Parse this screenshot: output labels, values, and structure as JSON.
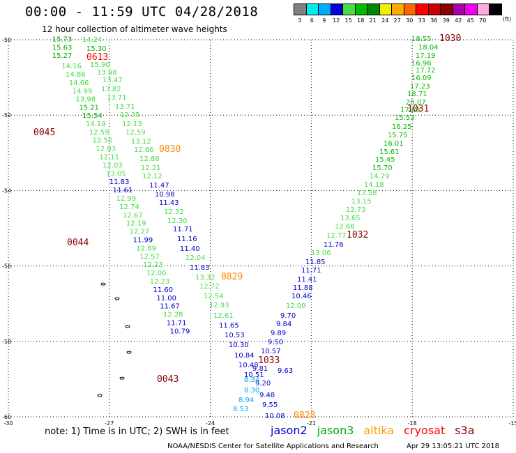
{
  "header": {
    "title": "00:00 - 11:59 UTC 04/28/2018",
    "subtitle": "12 hour collection of altimeter wave heights"
  },
  "color_scale": {
    "unit": "(ft)",
    "bins": [
      {
        "label": "3",
        "color": "#808080"
      },
      {
        "label": "6",
        "color": "#00eeee"
      },
      {
        "label": "9",
        "color": "#00aaff"
      },
      {
        "label": "12",
        "color": "#0000dd"
      },
      {
        "label": "15",
        "color": "#44dd44"
      },
      {
        "label": "18",
        "color": "#00bb00"
      },
      {
        "label": "21",
        "color": "#008800"
      },
      {
        "label": "24",
        "color": "#eeee00"
      },
      {
        "label": "27",
        "color": "#ffaa00"
      },
      {
        "label": "30",
        "color": "#ff6600"
      },
      {
        "label": "33",
        "color": "#ff0000"
      },
      {
        "label": "36",
        "color": "#cc0000"
      },
      {
        "label": "39",
        "color": "#880000"
      },
      {
        "label": "42",
        "color": "#aa00aa"
      },
      {
        "label": "45",
        "color": "#ee00ee"
      },
      {
        "label": "70",
        "color": "#ffaadd"
      },
      {
        "label": "",
        "color": "#000000"
      }
    ]
  },
  "map": {
    "lon_range": [
      -30,
      -15
    ],
    "lat_range": [
      -60,
      -50
    ],
    "lat_ticks": [
      {
        "value": -50,
        "label": "-50"
      },
      {
        "value": -52,
        "label": "-52"
      },
      {
        "value": -54,
        "label": "-54"
      },
      {
        "value": -56,
        "label": "-56"
      },
      {
        "value": -58,
        "label": "-58"
      },
      {
        "value": -60,
        "label": "-60"
      }
    ],
    "lon_ticks": [
      {
        "value": -30,
        "label": "-30"
      },
      {
        "value": -27,
        "label": "-27"
      },
      {
        "value": -24,
        "label": "-24"
      },
      {
        "value": -21,
        "label": "-21"
      },
      {
        "value": -18,
        "label": "-18"
      },
      {
        "value": -15,
        "label": "-15"
      }
    ],
    "grid": "dotted",
    "tracks": [
      {
        "satellite": "jason3",
        "points": [
          {
            "lon": -28.7,
            "lat": -50.05,
            "v": "15.73"
          },
          {
            "lon": -28.7,
            "lat": -50.27,
            "v": "15.63"
          },
          {
            "lon": -28.7,
            "lat": -50.48,
            "v": "15.27"
          },
          {
            "lon": -28.42,
            "lat": -50.76,
            "v": "14.16"
          },
          {
            "lon": -28.3,
            "lat": -50.98,
            "v": "14.86"
          },
          {
            "lon": -28.2,
            "lat": -51.2,
            "v": "14.66"
          },
          {
            "lon": -28.1,
            "lat": -51.42,
            "v": "14.99"
          },
          {
            "lon": -28.0,
            "lat": -51.64,
            "v": "13.98"
          },
          {
            "lon": -27.9,
            "lat": -51.86,
            "v": "15.21"
          },
          {
            "lon": -27.8,
            "lat": -52.07,
            "v": "15.54"
          },
          {
            "lon": -27.7,
            "lat": -52.29,
            "v": "14.19"
          },
          {
            "lon": -27.6,
            "lat": -52.51,
            "v": "12.59"
          },
          {
            "lon": -27.5,
            "lat": -52.73,
            "v": "12.50"
          },
          {
            "lon": -27.4,
            "lat": -52.95,
            "v": "12.83"
          },
          {
            "lon": -27.3,
            "lat": -53.17,
            "v": "12.11"
          },
          {
            "lon": -27.2,
            "lat": -53.39,
            "v": "12.03"
          },
          {
            "lon": -27.1,
            "lat": -53.61,
            "v": "13.05"
          },
          {
            "lon": -27.0,
            "lat": -53.83,
            "v": "11.83"
          },
          {
            "lon": -26.9,
            "lat": -54.05,
            "v": "11.61"
          },
          {
            "lon": -26.8,
            "lat": -54.27,
            "v": "12.99"
          },
          {
            "lon": -26.7,
            "lat": -54.49,
            "v": "12.74"
          },
          {
            "lon": -26.6,
            "lat": -54.71,
            "v": "12.67"
          },
          {
            "lon": -26.5,
            "lat": -54.93,
            "v": "12.19"
          },
          {
            "lon": -26.4,
            "lat": -55.15,
            "v": "12.27"
          },
          {
            "lon": -26.3,
            "lat": -55.37,
            "v": "11.99"
          },
          {
            "lon": -26.2,
            "lat": -55.59,
            "v": "12.89"
          },
          {
            "lon": -26.1,
            "lat": -55.81,
            "v": "12.57"
          },
          {
            "lon": -26.0,
            "lat": -56.03,
            "v": "12.23"
          },
          {
            "lon": -25.9,
            "lat": -56.25,
            "v": "12.00"
          },
          {
            "lon": -25.8,
            "lat": -56.47,
            "v": "12.23"
          },
          {
            "lon": -25.7,
            "lat": -56.69,
            "v": "11.60"
          },
          {
            "lon": -25.6,
            "lat": -56.91,
            "v": "11.00"
          },
          {
            "lon": -25.5,
            "lat": -57.13,
            "v": "11.67"
          },
          {
            "lon": -25.4,
            "lat": -57.35,
            "v": "12.28"
          },
          {
            "lon": -25.3,
            "lat": -57.57,
            "v": "11.71"
          },
          {
            "lon": -25.2,
            "lat": -57.79,
            "v": "10.79"
          }
        ]
      }
    ]
  },
  "track_labels": [
    {
      "text": "14.24",
      "color": "#44dd44"
    },
    {
      "text": "15.30",
      "color": "#00bb00"
    },
    {
      "text": "0613",
      "color": "#ff0000"
    },
    {
      "text": "15.90",
      "color": "#44dd44"
    },
    {
      "text": "13.98",
      "color": "#44dd44"
    },
    {
      "text": "13.47",
      "color": "#44dd44"
    },
    {
      "text": "13.82",
      "color": "#44dd44"
    },
    {
      "text": "13.71",
      "color": "#44dd44"
    },
    {
      "text": "13.71",
      "color": "#44dd44"
    },
    {
      "text": "12.35",
      "color": "#44dd44"
    },
    {
      "text": "12.13",
      "color": "#44dd44"
    },
    {
      "text": "12.59",
      "color": "#44dd44"
    },
    {
      "text": "13.12",
      "color": "#44dd44"
    },
    {
      "text": "12.66",
      "color": "#44dd44"
    },
    {
      "text": "0830",
      "color": "#ff8800"
    },
    {
      "text": "12.86",
      "color": "#44dd44"
    },
    {
      "text": "12.21",
      "color": "#44dd44"
    },
    {
      "text": "12.12",
      "color": "#44dd44"
    },
    {
      "text": "11.47",
      "color": "#0000cc"
    },
    {
      "text": "10.98",
      "color": "#0000cc"
    },
    {
      "text": "11.43",
      "color": "#0000cc"
    },
    {
      "text": "12.32",
      "color": "#44dd44"
    },
    {
      "text": "12.30",
      "color": "#44dd44"
    },
    {
      "text": "11.71",
      "color": "#0000cc"
    },
    {
      "text": "11.16",
      "color": "#0000cc"
    },
    {
      "text": "11.40",
      "color": "#0000cc"
    },
    {
      "text": "12.04",
      "color": "#44dd44"
    },
    {
      "text": "11.83",
      "color": "#0000cc"
    },
    {
      "text": "13.32",
      "color": "#44dd44"
    },
    {
      "text": "0829",
      "color": "#ff8800"
    },
    {
      "text": "12.72",
      "color": "#44dd44"
    },
    {
      "text": "12.54",
      "color": "#44dd44"
    },
    {
      "text": "12.93",
      "color": "#44dd44"
    },
    {
      "text": "12.61",
      "color": "#44dd44"
    },
    {
      "text": "11.65",
      "color": "#0000cc"
    },
    {
      "text": "10.53",
      "color": "#0000cc"
    },
    {
      "text": "10.30",
      "color": "#0000cc"
    },
    {
      "text": "10.84",
      "color": "#0000cc"
    },
    {
      "text": "10.48",
      "color": "#0000cc"
    },
    {
      "text": "10.51",
      "color": "#0000cc"
    },
    {
      "text": "8.34",
      "color": "#00aaff"
    },
    {
      "text": "8.30",
      "color": "#00aaff"
    },
    {
      "text": "8.94",
      "color": "#00aaff"
    },
    {
      "text": "8.53",
      "color": "#00aaff"
    },
    {
      "text": "0045",
      "color": "#880000"
    },
    {
      "text": "0044",
      "color": "#880000"
    },
    {
      "text": "0043",
      "color": "#880000"
    },
    {
      "text": "18.55",
      "color": "#00bb00"
    },
    {
      "text": "1030",
      "color": "#880000"
    },
    {
      "text": "18.04",
      "color": "#00bb00"
    },
    {
      "text": "17.19",
      "color": "#00bb00"
    },
    {
      "text": "16.96",
      "color": "#00bb00"
    },
    {
      "text": "17.72",
      "color": "#00bb00"
    },
    {
      "text": "16.09",
      "color": "#00bb00"
    },
    {
      "text": "17.23",
      "color": "#00bb00"
    },
    {
      "text": "18.71",
      "color": "#00bb00"
    },
    {
      "text": "20.07",
      "color": "#00bb00"
    },
    {
      "text": "17.63",
      "color": "#00bb00"
    },
    {
      "text": "1031",
      "color": "#880000"
    },
    {
      "text": "15.53",
      "color": "#00bb00"
    },
    {
      "text": "16.25",
      "color": "#00bb00"
    },
    {
      "text": "15.75",
      "color": "#00bb00"
    },
    {
      "text": "16.01",
      "color": "#00bb00"
    },
    {
      "text": "15.61",
      "color": "#00bb00"
    },
    {
      "text": "15.45",
      "color": "#00bb00"
    },
    {
      "text": "15.70",
      "color": "#00bb00"
    },
    {
      "text": "14.29",
      "color": "#44dd44"
    },
    {
      "text": "14.18",
      "color": "#44dd44"
    },
    {
      "text": "13.58",
      "color": "#44dd44"
    },
    {
      "text": "13.15",
      "color": "#44dd44"
    },
    {
      "text": "13.73",
      "color": "#44dd44"
    },
    {
      "text": "13.65",
      "color": "#44dd44"
    },
    {
      "text": "12.68",
      "color": "#44dd44"
    },
    {
      "text": "12.77",
      "color": "#44dd44"
    },
    {
      "text": "1032",
      "color": "#880000"
    },
    {
      "text": "11.76",
      "color": "#0000cc"
    },
    {
      "text": "13.06",
      "color": "#44dd44"
    },
    {
      "text": "11.85",
      "color": "#0000cc"
    },
    {
      "text": "11.71",
      "color": "#0000cc"
    },
    {
      "text": "11.41",
      "color": "#0000cc"
    },
    {
      "text": "11.88",
      "color": "#0000cc"
    },
    {
      "text": "10.46",
      "color": "#0000cc"
    },
    {
      "text": "12.09",
      "color": "#44dd44"
    },
    {
      "text": "9.70",
      "color": "#0000cc"
    },
    {
      "text": "9.84",
      "color": "#0000cc"
    },
    {
      "text": "9.89",
      "color": "#0000cc"
    },
    {
      "text": "9.50",
      "color": "#0000cc"
    },
    {
      "text": "10.57",
      "color": "#0000cc"
    },
    {
      "text": "9.63",
      "color": "#0000cc"
    },
    {
      "text": "1033",
      "color": "#880000"
    },
    {
      "text": "9.81",
      "color": "#0000cc"
    },
    {
      "text": "9.20",
      "color": "#0000cc"
    },
    {
      "text": "9.48",
      "color": "#0000cc"
    },
    {
      "text": "9.55",
      "color": "#0000cc"
    },
    {
      "text": "10.08",
      "color": "#0000cc"
    },
    {
      "text": "0828",
      "color": "#ff8800"
    }
  ],
  "footer": {
    "note": "note: 1) Time is in UTC; 2) SWH is in feet",
    "legend": [
      {
        "name": "jason2",
        "color": "#0000cc"
      },
      {
        "name": "jason3",
        "color": "#00aa00"
      },
      {
        "name": "altika",
        "color": "#ff9900"
      },
      {
        "name": "cryosat",
        "color": "#ff0000"
      },
      {
        "name": "s3a",
        "color": "#880000"
      }
    ],
    "credit": "NOAA/NESDIS Center for Satellite Applications and Research",
    "timestamp": "Apr 29 13:05:21 UTC 2018"
  }
}
